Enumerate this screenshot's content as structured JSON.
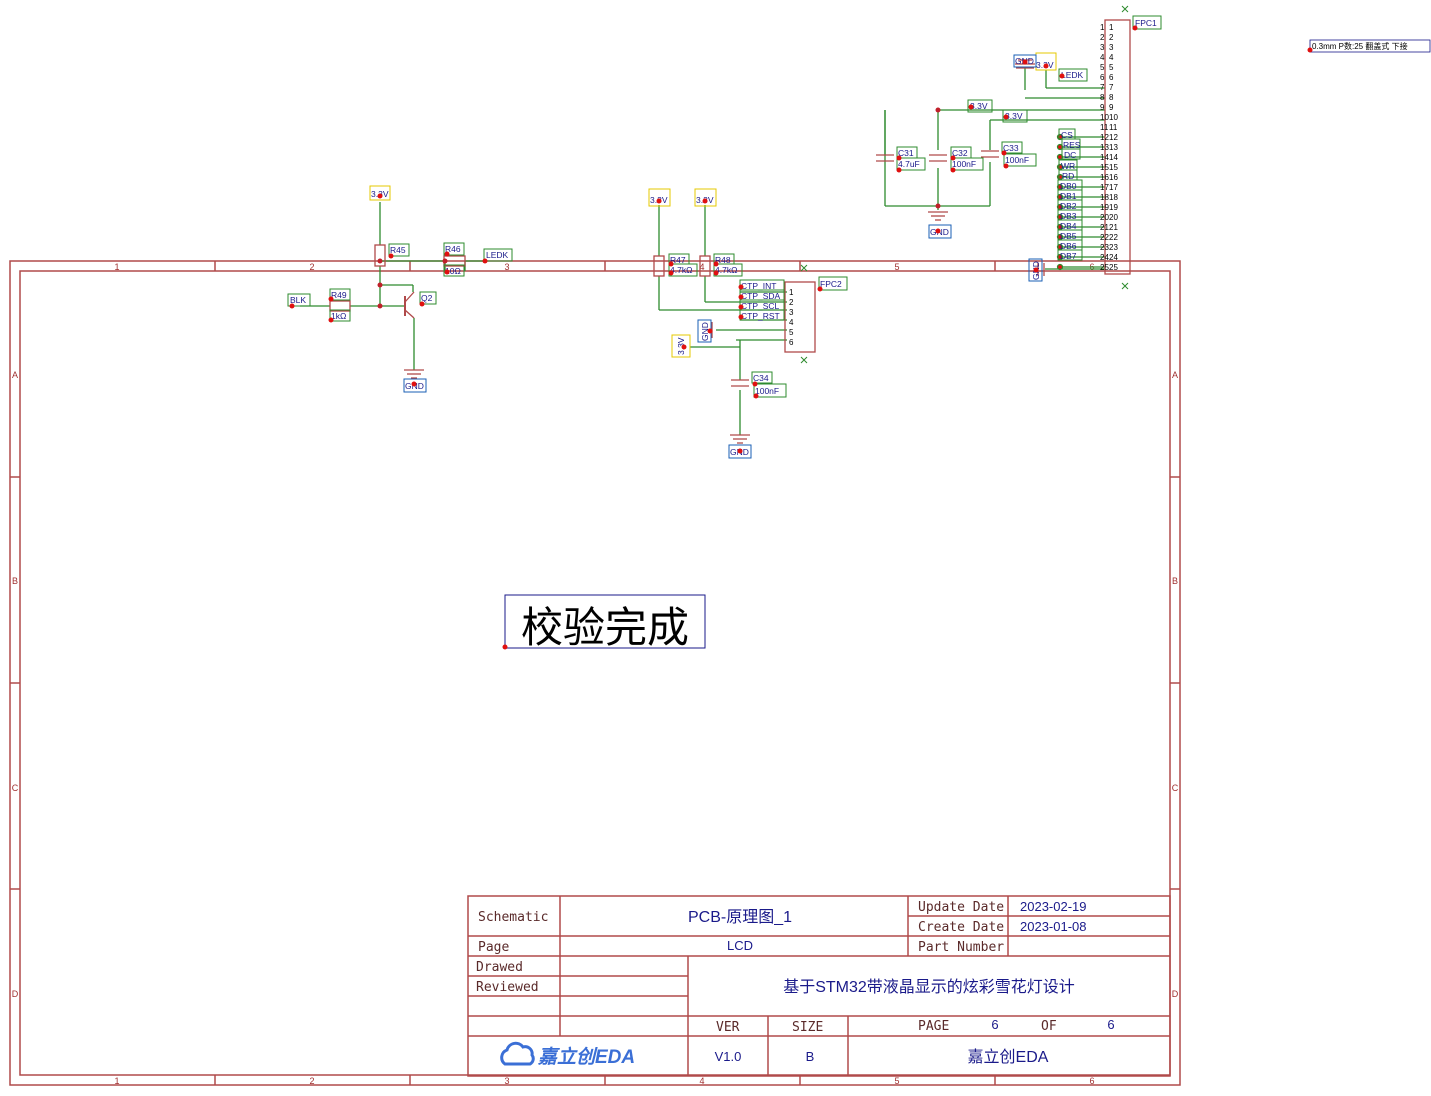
{
  "frame": {
    "col_labels": [
      "1",
      "2",
      "3",
      "4",
      "5",
      "6"
    ],
    "row_labels": [
      "A",
      "B",
      "C",
      "D"
    ]
  },
  "title_block": {
    "schematic_label": "Schematic",
    "schematic_value": "PCB-原理图_1",
    "page_label": "Page",
    "page_value": "LCD",
    "drawed_label": "Drawed",
    "reviewed_label": "Reviewed",
    "update_label": "Update Date",
    "update_value": "2023-02-19",
    "create_label": "Create Date",
    "create_value": "2023-01-08",
    "part_label": "Part Number",
    "part_value": "",
    "project_title": "基于STM32带液晶显示的炫彩雪花灯设计",
    "ver_label": "VER",
    "ver_value": "V1.0",
    "size_label": "SIZE",
    "size_value": "B",
    "page_num_label": "PAGE",
    "page_num": "6",
    "of_label": "OF",
    "page_total": "6",
    "logo_text": "嘉立创EDA",
    "company": "嘉立创EDA"
  },
  "stamp": "校验完成",
  "fpc1_note": "0.3mm P数:25 翻盖式 下接",
  "nets": {
    "v33": "3.3V",
    "gnd": "GND",
    "ledk": "LEDK",
    "blk": "BLK",
    "ctp_int": "CTP_INT",
    "ctp_sda": "CTP_SDA",
    "ctp_scl": "CTP_SCL",
    "ctp_rst": "CTP_RST",
    "cs": "CS",
    "res": "RES",
    "dc": "DC",
    "wr": "WR",
    "rd": "RD"
  },
  "components": {
    "r45": "R45",
    "r46": "R46",
    "r46_val": "10Ω",
    "r47": "R47",
    "r47_val": "4.7kΩ",
    "r48": "R48",
    "r48_val": "4.7kΩ",
    "r49": "R49",
    "r49_val": "1kΩ",
    "q2": "Q2",
    "fpc1": "FPC1",
    "fpc2": "FPC2",
    "c31": "C31",
    "c31_val": "4.7uF",
    "c32": "C32",
    "c32_val": "100nF",
    "c33": "C33",
    "c33_val": "100nF",
    "c34": "C34",
    "c34_val": "100nF"
  },
  "fpc1_pins": [
    "1",
    "2",
    "3",
    "4",
    "5",
    "6",
    "7",
    "8",
    "9",
    "10",
    "11",
    "12",
    "13",
    "14",
    "15",
    "16",
    "17",
    "18",
    "19",
    "20",
    "21",
    "22",
    "23",
    "24",
    "25"
  ],
  "fpc1_db_labels": [
    "DB0",
    "DB1",
    "DB2",
    "DB3",
    "DB4",
    "DB5",
    "DB6",
    "DB7"
  ],
  "fpc2_pins": [
    "1",
    "2",
    "3",
    "4",
    "5",
    "6"
  ]
}
